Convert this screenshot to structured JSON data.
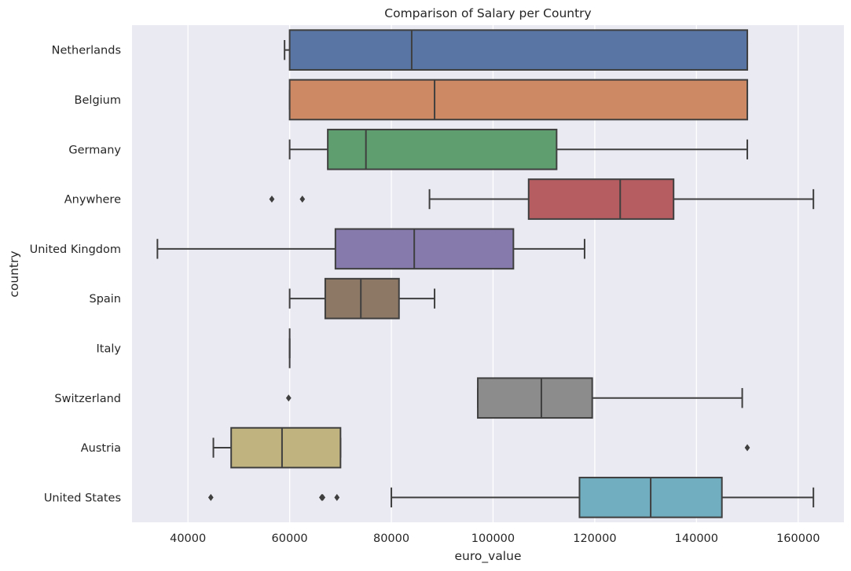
{
  "chart_data": {
    "type": "box",
    "title": "Comparison of Salary per Country",
    "xlabel": "euro_value",
    "ylabel": "country",
    "xlim": [
      29000,
      169000
    ],
    "xticks": [
      40000,
      60000,
      80000,
      100000,
      120000,
      140000,
      160000
    ],
    "grid": true,
    "legend": "none",
    "background": "#EAEAF2",
    "orientation": "horizontal",
    "categories": [
      "Netherlands",
      "Belgium",
      "Germany",
      "Anywhere",
      "United Kingdom",
      "Spain",
      "Italy",
      "Switzerland",
      "Austria",
      "United States"
    ],
    "series": [
      {
        "category": "Netherlands",
        "whisker_low": 59000,
        "q1": 60000,
        "median": 84000,
        "q3": 150000,
        "whisker_high": 150000,
        "outliers": [],
        "color": "#5875A4"
      },
      {
        "category": "Belgium",
        "whisker_low": 60000,
        "q1": 60000,
        "median": 88500,
        "q3": 150000,
        "whisker_high": 150000,
        "outliers": [],
        "color": "#CC8963"
      },
      {
        "category": "Germany",
        "whisker_low": 60000,
        "q1": 67500,
        "median": 75000,
        "q3": 112500,
        "whisker_high": 150000,
        "outliers": [],
        "color": "#5F9E6E"
      },
      {
        "category": "Anywhere",
        "whisker_low": 87500,
        "q1": 107000,
        "median": 125000,
        "q3": 135500,
        "whisker_high": 163000,
        "outliers": [
          56500,
          62500
        ],
        "color": "#B55D60"
      },
      {
        "category": "United Kingdom",
        "whisker_low": 34000,
        "q1": 69000,
        "median": 84500,
        "q3": 104000,
        "whisker_high": 118000,
        "outliers": [],
        "color": "#857AAB"
      },
      {
        "category": "Spain",
        "whisker_low": 60000,
        "q1": 67000,
        "median": 74000,
        "q3": 81500,
        "whisker_high": 88500,
        "outliers": [],
        "color": "#8D7866"
      },
      {
        "category": "Italy",
        "whisker_low": 60000,
        "q1": 60000,
        "median": 60000,
        "q3": 60000,
        "whisker_high": 60000,
        "outliers": [],
        "color": "#D095BF"
      },
      {
        "category": "Switzerland",
        "whisker_low": 97000,
        "q1": 97000,
        "median": 109500,
        "q3": 119500,
        "whisker_high": 149000,
        "outliers": [
          59800
        ],
        "color": "#8C8C8C"
      },
      {
        "category": "Austria",
        "whisker_low": 45000,
        "q1": 48500,
        "median": 58500,
        "q3": 70000,
        "whisker_high": 70000,
        "outliers": [
          150000
        ],
        "color": "#C1B37F"
      },
      {
        "category": "United States",
        "whisker_low": 80000,
        "q1": 117000,
        "median": 131000,
        "q3": 145000,
        "whisker_high": 163000,
        "outliers": [
          44500,
          66300,
          66500,
          69300
        ],
        "color": "#71AEC0"
      }
    ]
  }
}
